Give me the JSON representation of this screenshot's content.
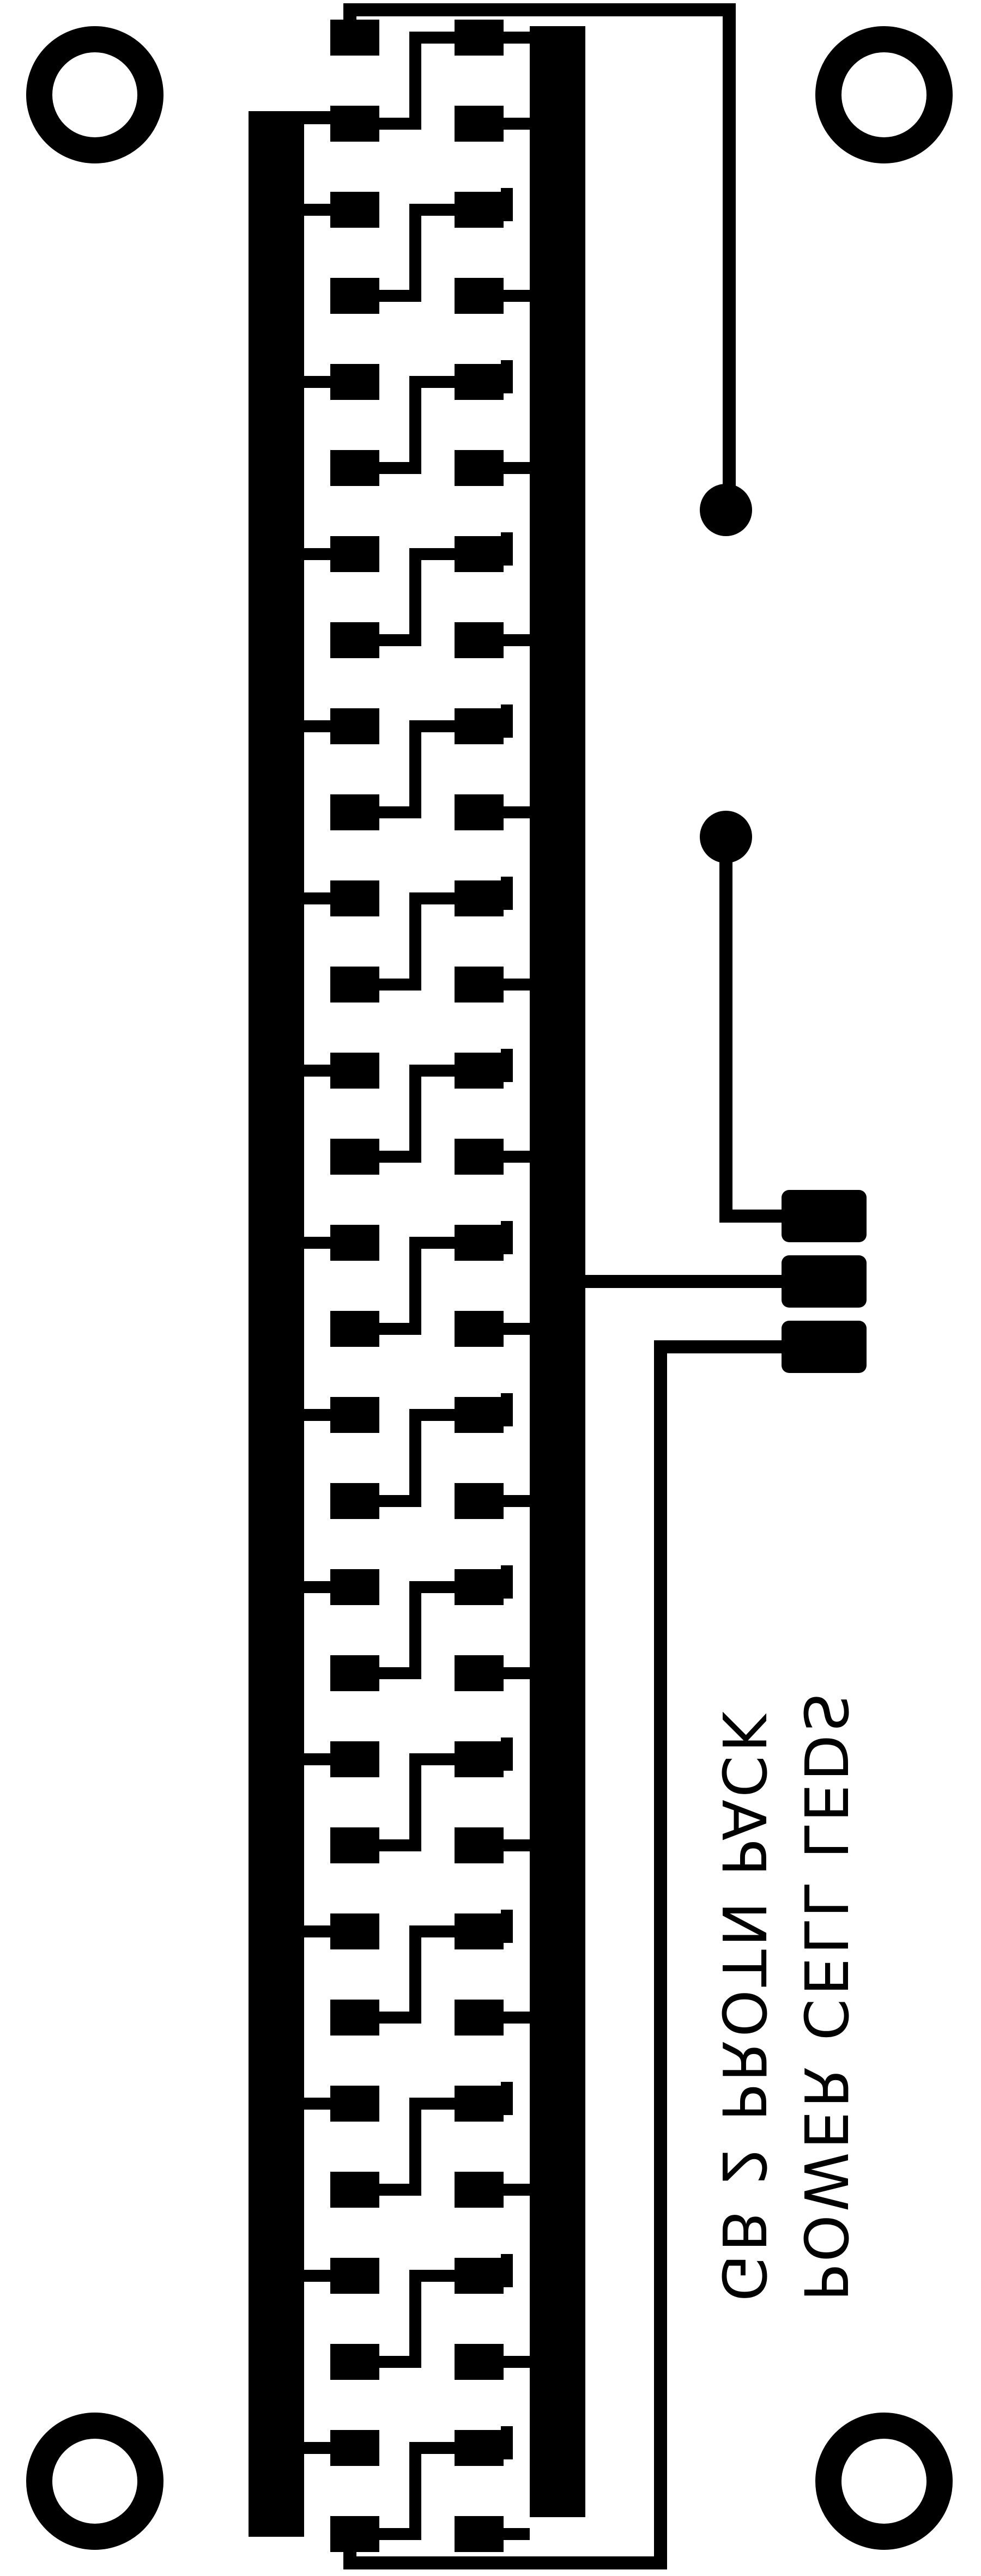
{
  "board": {
    "background_color": "#ffffff",
    "trace_color": "#000000"
  },
  "labels": {
    "line1": "POWER CELL LEDS",
    "line2": "GB 2 PROTN PACK"
  },
  "led_array": {
    "rows": 30,
    "columns": 2
  },
  "connector": {
    "pin_count": 3
  },
  "test_points": {
    "count": 2
  },
  "mounting_holes": {
    "count": 4
  }
}
